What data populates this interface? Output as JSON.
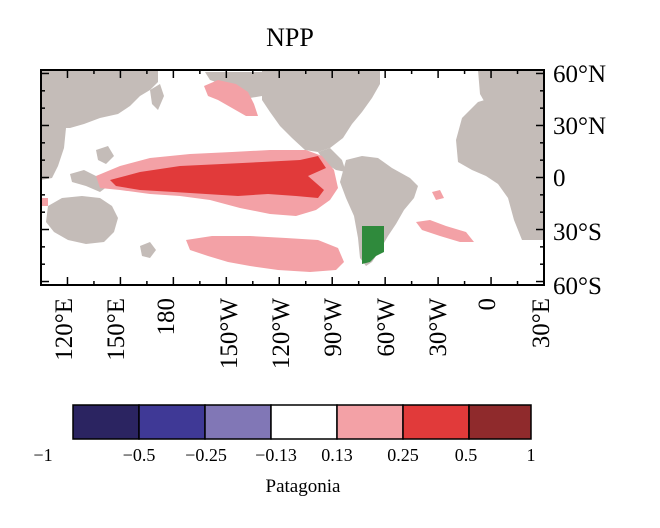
{
  "title": "NPP",
  "map": {
    "projection": "cylindrical equidistant",
    "lon_range": [
      105,
      30
    ],
    "lat_range": [
      -62,
      62
    ],
    "lon_ticks": [
      "120°E",
      "150°E",
      "180",
      "150°W",
      "120°W",
      "90°W",
      "60°W",
      "30°W",
      "0",
      "30°E"
    ],
    "lat_ticks": [
      "60°N",
      "30°N",
      "0",
      "30°S",
      "60°S"
    ],
    "colors": {
      "land": "#c4bcb8",
      "positive_weak": "#f3a1a6",
      "positive_strong": "#e13a3a",
      "highlight_region": "#2f8a3c",
      "ocean": "#ffffff"
    },
    "highlight_region_name": "Patagonia"
  },
  "colorbar": {
    "labels": [
      "−1",
      "−0.5",
      "−0.25",
      "−0.13",
      "0.13",
      "0.25",
      "0.5",
      "1"
    ],
    "colors": [
      "#2b2461",
      "#3f3996",
      "#8177b6",
      "#ffffff",
      "#f3a1a6",
      "#e13a3a",
      "#8f2a2c"
    ],
    "caption": "Patagonia"
  }
}
